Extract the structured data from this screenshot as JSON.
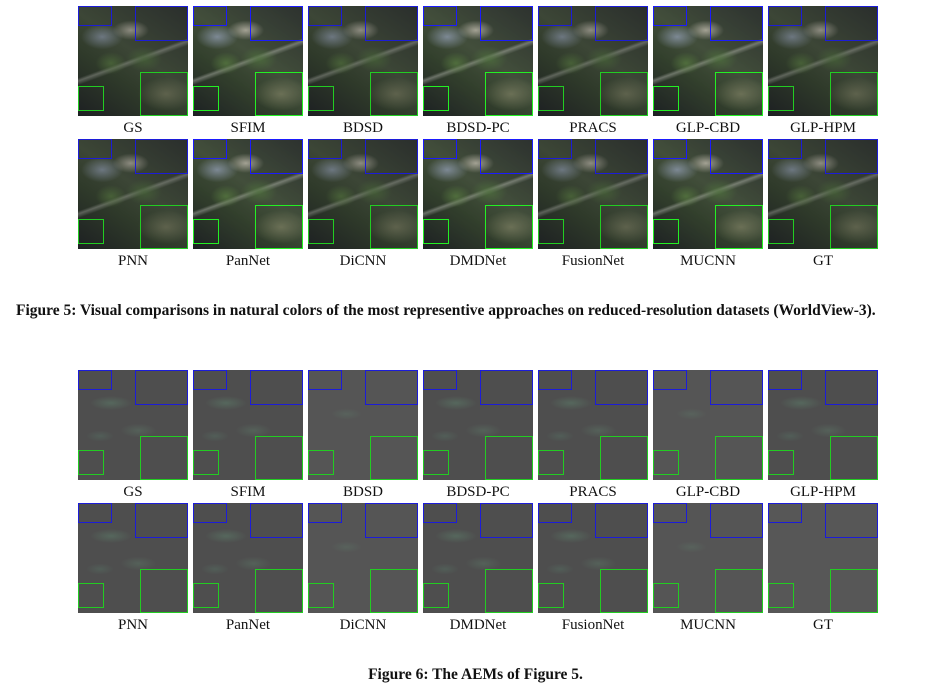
{
  "figure5": {
    "row1_labels": [
      "GS",
      "SFIM",
      "BDSD",
      "BDSD-PC",
      "PRACS",
      "GLP-CBD",
      "GLP-HPM"
    ],
    "row2_labels": [
      "PNN",
      "PanNet",
      "DiCNN",
      "DMDNet",
      "FusionNet",
      "MUCNN",
      "GT"
    ],
    "caption": "Figure 5: Visual comparisons in natural colors of the most representive approaches on reduced-resolution datasets (WorldView-3)."
  },
  "figure6": {
    "row1_labels": [
      "GS",
      "SFIM",
      "BDSD",
      "BDSD-PC",
      "PRACS",
      "GLP-CBD",
      "GLP-HPM"
    ],
    "row2_labels": [
      "PNN",
      "PanNet",
      "DiCNN",
      "DMDNet",
      "FusionNet",
      "MUCNN",
      "GT"
    ],
    "caption": "Figure 6: The AEMs of Figure 5."
  },
  "colors": {
    "zoom_box_blue": "#1c1cd8",
    "zoom_box_green": "#22cc22"
  }
}
